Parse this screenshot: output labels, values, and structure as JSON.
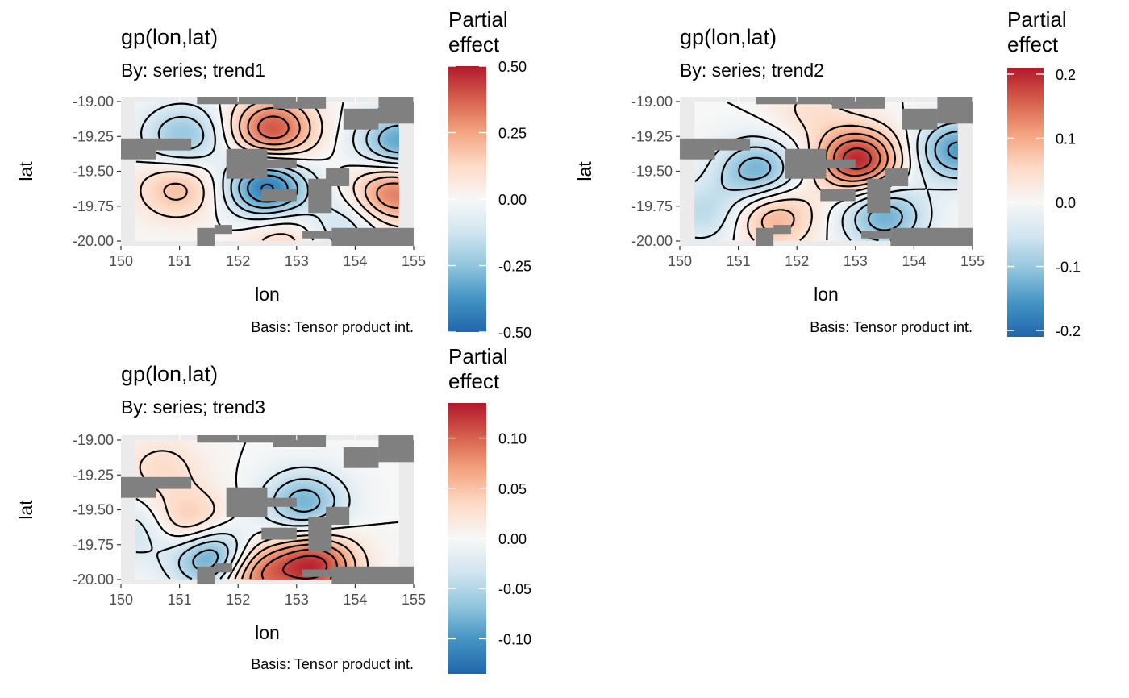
{
  "chart_data": [
    {
      "type": "heatmap",
      "title": "gp(lon,lat)",
      "subtitle": "By: series; trend1",
      "xlabel": "lon",
      "ylabel": "lat",
      "caption": "Basis: Tensor product int.",
      "xlim": [
        150,
        155
      ],
      "ylim": [
        -20.0,
        -19.0
      ],
      "x_ticks": [
        "150",
        "151",
        "152",
        "153",
        "154",
        "155"
      ],
      "y_ticks": [
        "-19.00",
        "-19.25",
        "-19.50",
        "-19.75",
        "-20.00"
      ],
      "legend": {
        "title_lines": [
          "Partial",
          "effect"
        ],
        "range": [
          -0.5,
          0.5
        ],
        "ticks": [
          "0.50",
          "0.25",
          "0.00",
          "-0.25",
          "-0.50"
        ],
        "tick_values": [
          0.5,
          0.25,
          0.0,
          -0.25,
          -0.5
        ]
      },
      "extrema": [
        {
          "lon": 150.9,
          "lat": -19.25,
          "value": -0.25
        },
        {
          "lon": 152.6,
          "lat": -19.2,
          "value": 0.4
        },
        {
          "lon": 155.0,
          "lat": -19.3,
          "value": -0.35
        },
        {
          "lon": 150.8,
          "lat": -19.62,
          "value": 0.2
        },
        {
          "lon": 152.5,
          "lat": -19.62,
          "value": -0.45
        },
        {
          "lon": 154.9,
          "lat": -19.65,
          "value": 0.35
        },
        {
          "lon": 153.9,
          "lat": -19.9,
          "value": -0.15
        },
        {
          "lon": 152.8,
          "lat": -19.97,
          "value": 0.15
        }
      ]
    },
    {
      "type": "heatmap",
      "title": "gp(lon,lat)",
      "subtitle": "By: series; trend2",
      "xlabel": "lon",
      "ylabel": "lat",
      "caption": "Basis: Tensor product int.",
      "xlim": [
        150,
        155
      ],
      "ylim": [
        -20.0,
        -19.0
      ],
      "x_ticks": [
        "150",
        "151",
        "152",
        "153",
        "154",
        "155"
      ],
      "y_ticks": [
        "-19.00",
        "-19.25",
        "-19.50",
        "-19.75",
        "-20.00"
      ],
      "legend": {
        "title_lines": [
          "Partial",
          "effect"
        ],
        "range": [
          -0.21,
          0.21
        ],
        "ticks": [
          "0.2",
          "0.1",
          "0.0",
          "-0.1",
          "-0.2"
        ],
        "tick_values": [
          0.2,
          0.1,
          0.0,
          -0.1,
          -0.2
        ]
      },
      "extrema": [
        {
          "lon": 151.2,
          "lat": -19.5,
          "value": -0.13
        },
        {
          "lon": 153.1,
          "lat": -19.42,
          "value": 0.2
        },
        {
          "lon": 155.0,
          "lat": -19.35,
          "value": -0.15
        },
        {
          "lon": 153.6,
          "lat": -19.82,
          "value": -0.13
        },
        {
          "lon": 151.5,
          "lat": -19.82,
          "value": 0.1
        },
        {
          "lon": 150.2,
          "lat": -19.8,
          "value": -0.07
        },
        {
          "lon": 152.2,
          "lat": -19.05,
          "value": 0.04
        }
      ]
    },
    {
      "type": "heatmap",
      "title": "gp(lon,lat)",
      "subtitle": "By: series; trend3",
      "xlabel": "lon",
      "ylabel": "lat",
      "caption": "Basis: Tensor product int.",
      "xlim": [
        150,
        155
      ],
      "ylim": [
        -20.0,
        -19.0
      ],
      "x_ticks": [
        "150",
        "151",
        "152",
        "153",
        "154",
        "155"
      ],
      "y_ticks": [
        "-19.00",
        "-19.25",
        "-19.50",
        "-19.75",
        "-20.00"
      ],
      "legend": {
        "title_lines": [
          "Partial",
          "effect"
        ],
        "range": [
          -0.135,
          0.135
        ],
        "ticks": [
          "0.10",
          "0.05",
          "0.00",
          "-0.05",
          "-0.10"
        ],
        "tick_values": [
          0.1,
          0.05,
          0.0,
          -0.05,
          -0.1
        ]
      },
      "extrema": [
        {
          "lon": 151.5,
          "lat": -19.85,
          "value": -0.12
        },
        {
          "lon": 153.4,
          "lat": -19.9,
          "value": 0.12
        },
        {
          "lon": 153.2,
          "lat": -19.45,
          "value": -0.08
        },
        {
          "lon": 151.0,
          "lat": -19.6,
          "value": 0.06
        },
        {
          "lon": 150.5,
          "lat": -19.2,
          "value": 0.03
        },
        {
          "lon": 152.2,
          "lat": -19.95,
          "value": 0.1
        },
        {
          "lon": 150.1,
          "lat": -19.65,
          "value": -0.04
        }
      ]
    }
  ]
}
